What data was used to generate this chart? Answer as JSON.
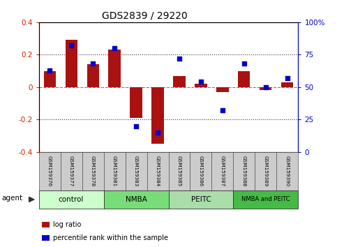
{
  "title": "GDS2839 / 29220",
  "samples": [
    "GSM159376",
    "GSM159377",
    "GSM159378",
    "GSM159381",
    "GSM159383",
    "GSM159384",
    "GSM159385",
    "GSM159386",
    "GSM159387",
    "GSM159388",
    "GSM159389",
    "GSM159390"
  ],
  "log_ratio": [
    0.1,
    0.29,
    0.14,
    0.23,
    -0.19,
    -0.35,
    0.07,
    0.02,
    -0.03,
    0.1,
    -0.02,
    0.03
  ],
  "percentile_rank": [
    63,
    82,
    68,
    80,
    20,
    15,
    72,
    54,
    32,
    68,
    50,
    57
  ],
  "ylim_left": [
    -0.4,
    0.4
  ],
  "ylim_right": [
    0,
    100
  ],
  "bar_color": "#AA1111",
  "dot_color": "#0000CC",
  "zero_line_color": "#FF4444",
  "dotted_line_color": "#333333",
  "bg_color": "#FFFFFF",
  "plot_bg_color": "#FFFFFF",
  "groups": [
    {
      "label": "control",
      "start": 0,
      "end": 3,
      "color": "#CCFFCC"
    },
    {
      "label": "NMBA",
      "start": 3,
      "end": 6,
      "color": "#77DD77"
    },
    {
      "label": "PEITC",
      "start": 6,
      "end": 9,
      "color": "#AADDAA"
    },
    {
      "label": "NMBA and PEITC",
      "start": 9,
      "end": 12,
      "color": "#44BB44"
    }
  ],
  "legend_log_ratio": "log ratio",
  "legend_percentile": "percentile rank within the sample",
  "title_fontsize": 10,
  "bar_width": 0.55
}
